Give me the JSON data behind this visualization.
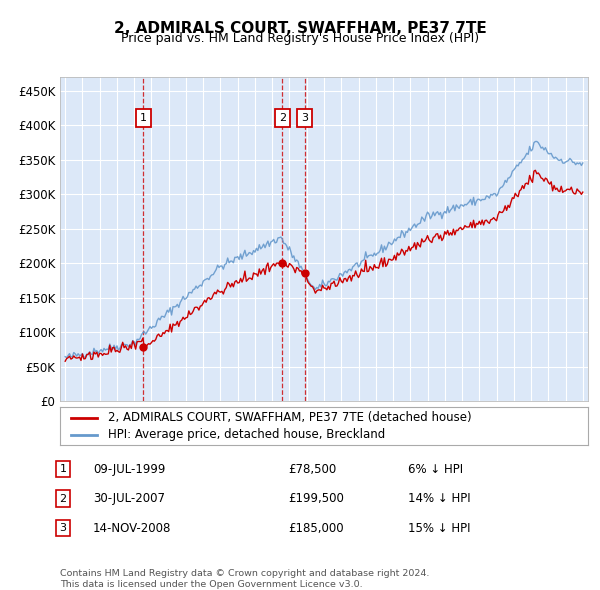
{
  "title": "2, ADMIRALS COURT, SWAFFHAM, PE37 7TE",
  "subtitle": "Price paid vs. HM Land Registry's House Price Index (HPI)",
  "background_color": "#ffffff",
  "plot_bg_color": "#dce8f8",
  "grid_color": "#ffffff",
  "red_line_color": "#cc0000",
  "blue_line_color": "#6699cc",
  "transactions": [
    {
      "label": "1",
      "date_x": 1999.53,
      "price": 78500,
      "date_str": "09-JUL-1999",
      "pct": "6%"
    },
    {
      "label": "2",
      "date_x": 2007.58,
      "price": 199500,
      "date_str": "30-JUL-2007",
      "pct": "14%"
    },
    {
      "label": "3",
      "date_x": 2008.87,
      "price": 185000,
      "date_str": "14-NOV-2008",
      "pct": "15%"
    }
  ],
  "ylim": [
    0,
    470000
  ],
  "yticks": [
    0,
    50000,
    100000,
    150000,
    200000,
    250000,
    300000,
    350000,
    400000,
    450000
  ],
  "ytick_labels": [
    "£0",
    "£50K",
    "£100K",
    "£150K",
    "£200K",
    "£250K",
    "£300K",
    "£350K",
    "£400K",
    "£450K"
  ],
  "xlim_start": 1994.7,
  "xlim_end": 2025.3,
  "xticks": [
    1995,
    1996,
    1997,
    1998,
    1999,
    2000,
    2001,
    2002,
    2003,
    2004,
    2005,
    2006,
    2007,
    2008,
    2009,
    2010,
    2011,
    2012,
    2013,
    2014,
    2015,
    2016,
    2017,
    2018,
    2019,
    2020,
    2021,
    2022,
    2023,
    2024,
    2025
  ],
  "legend_line1": "2, ADMIRALS COURT, SWAFFHAM, PE37 7TE (detached house)",
  "legend_line2": "HPI: Average price, detached house, Breckland",
  "footer1": "Contains HM Land Registry data © Crown copyright and database right 2024.",
  "footer2": "This data is licensed under the Open Government Licence v3.0.",
  "table_rows": [
    [
      "1",
      "09-JUL-1999",
      "£78,500",
      "6% ↓ HPI"
    ],
    [
      "2",
      "30-JUL-2007",
      "£199,500",
      "14% ↓ HPI"
    ],
    [
      "3",
      "14-NOV-2008",
      "£185,000",
      "15% ↓ HPI"
    ]
  ]
}
